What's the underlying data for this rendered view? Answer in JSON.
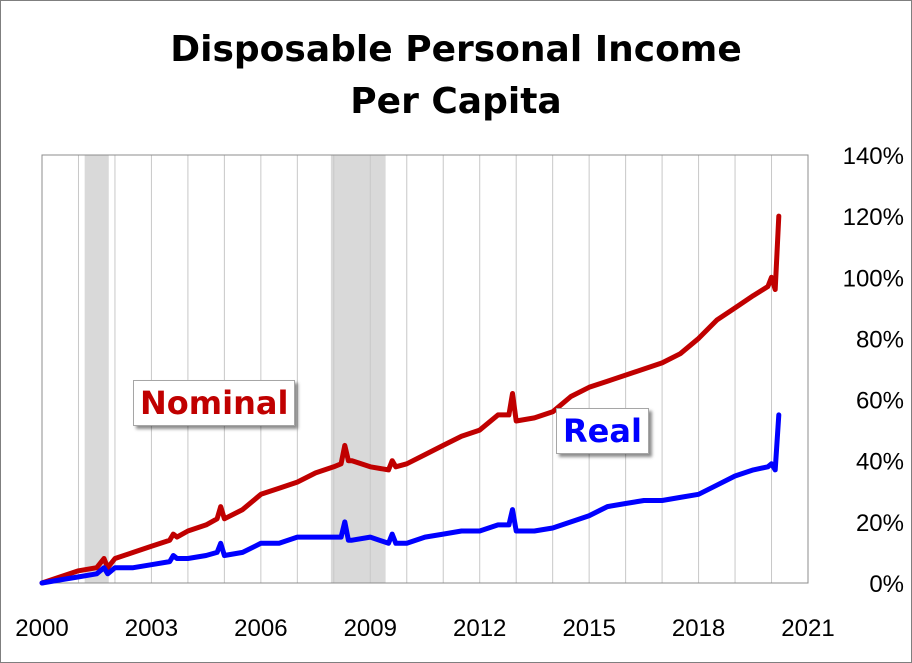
{
  "chart_data": {
    "type": "line",
    "title_line1": "Disposable Personal Income",
    "title_line2": "Per Capita",
    "xlabel": "",
    "ylabel": "",
    "xlim": [
      2000,
      2021
    ],
    "ylim": [
      0,
      140
    ],
    "x_ticks": [
      "2000",
      "2003",
      "2006",
      "2009",
      "2012",
      "2015",
      "2018",
      "2021"
    ],
    "y_ticks": [
      "0%",
      "20%",
      "40%",
      "60%",
      "80%",
      "100%",
      "120%",
      "140%"
    ],
    "grid": true,
    "recessions": [
      [
        2001.17,
        2001.83
      ],
      [
        2007.92,
        2009.42
      ]
    ],
    "series": [
      {
        "name": "Nominal",
        "color": "#c00000",
        "x": [
          2000.0,
          2000.5,
          2001.0,
          2001.5,
          2001.7,
          2001.8,
          2002.0,
          2002.5,
          2003.0,
          2003.5,
          2003.6,
          2003.7,
          2004.0,
          2004.5,
          2004.8,
          2004.9,
          2005.0,
          2005.5,
          2006.0,
          2006.5,
          2007.0,
          2007.5,
          2008.0,
          2008.2,
          2008.3,
          2008.4,
          2008.5,
          2009.0,
          2009.5,
          2009.6,
          2009.7,
          2010.0,
          2010.5,
          2011.0,
          2011.5,
          2012.0,
          2012.5,
          2012.8,
          2012.9,
          2013.0,
          2013.5,
          2014.0,
          2014.5,
          2015.0,
          2015.5,
          2016.0,
          2016.5,
          2017.0,
          2017.5,
          2018.0,
          2018.5,
          2019.0,
          2019.5,
          2019.9,
          2020.0,
          2020.1,
          2020.2
        ],
        "values": [
          0,
          2,
          4,
          5,
          8,
          5,
          8,
          10,
          12,
          14,
          16,
          15,
          17,
          19,
          21,
          25,
          21,
          24,
          29,
          31,
          33,
          36,
          38,
          39,
          45,
          40,
          40,
          38,
          37,
          40,
          38,
          39,
          42,
          45,
          48,
          50,
          55,
          55,
          62,
          53,
          54,
          56,
          61,
          64,
          66,
          68,
          70,
          72,
          75,
          80,
          86,
          90,
          94,
          97,
          100,
          96,
          120
        ]
      },
      {
        "name": "Real",
        "color": "#0000ff",
        "x": [
          2000.0,
          2000.5,
          2001.0,
          2001.5,
          2001.7,
          2001.8,
          2002.0,
          2002.5,
          2003.0,
          2003.5,
          2003.6,
          2003.7,
          2004.0,
          2004.5,
          2004.8,
          2004.9,
          2005.0,
          2005.5,
          2006.0,
          2006.5,
          2007.0,
          2007.5,
          2008.0,
          2008.2,
          2008.3,
          2008.4,
          2008.5,
          2009.0,
          2009.5,
          2009.6,
          2009.7,
          2010.0,
          2010.5,
          2011.0,
          2011.5,
          2012.0,
          2012.5,
          2012.8,
          2012.9,
          2013.0,
          2013.5,
          2014.0,
          2014.5,
          2015.0,
          2015.5,
          2016.0,
          2016.5,
          2017.0,
          2017.5,
          2018.0,
          2018.5,
          2019.0,
          2019.5,
          2019.9,
          2020.0,
          2020.1,
          2020.2
        ],
        "values": [
          0,
          1,
          2,
          3,
          5,
          3,
          5,
          5,
          6,
          7,
          9,
          8,
          8,
          9,
          10,
          13,
          9,
          10,
          13,
          13,
          15,
          15,
          15,
          15,
          20,
          14,
          14,
          15,
          13,
          16,
          13,
          13,
          15,
          16,
          17,
          17,
          19,
          19,
          24,
          17,
          17,
          18,
          20,
          22,
          25,
          26,
          27,
          27,
          28,
          29,
          32,
          35,
          37,
          38,
          39,
          37,
          55
        ]
      }
    ]
  }
}
